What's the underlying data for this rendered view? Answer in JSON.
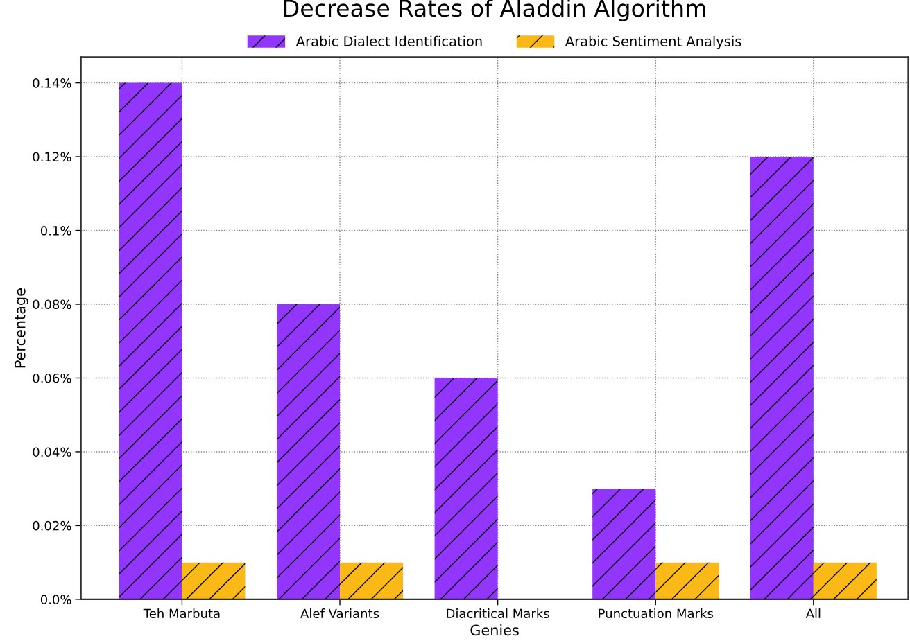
{
  "chart_data": {
    "type": "bar",
    "title": "Decrease Rates of Aladdin Algorithm",
    "xlabel": "Genies",
    "ylabel": "Percentage",
    "categories": [
      "Teh Marbuta",
      "Alef Variants",
      "Diacritical Marks",
      "Punctuation Marks",
      "All"
    ],
    "series": [
      {
        "name": "Arabic Dialect Identification",
        "color": "#9336fd",
        "values": [
          0.14,
          0.08,
          0.06,
          0.03,
          0.12
        ]
      },
      {
        "name": "Arabic Sentiment Analysis",
        "color": "#fbb918",
        "values": [
          0.01,
          0.01,
          0,
          0.01,
          0.01
        ]
      }
    ],
    "ylim": [
      0,
      0.147
    ],
    "yticks": [
      {
        "value": 0,
        "label": "0.0%"
      },
      {
        "value": 0.02,
        "label": "0.02%"
      },
      {
        "value": 0.04,
        "label": "0.04%"
      },
      {
        "value": 0.06,
        "label": "0.06%"
      },
      {
        "value": 0.08,
        "label": "0.08%"
      },
      {
        "value": 0.1,
        "label": "0.1%"
      },
      {
        "value": 0.12,
        "label": "0.12%"
      },
      {
        "value": 0.14,
        "label": "0.14%"
      }
    ],
    "grid": true,
    "legend": "top"
  }
}
